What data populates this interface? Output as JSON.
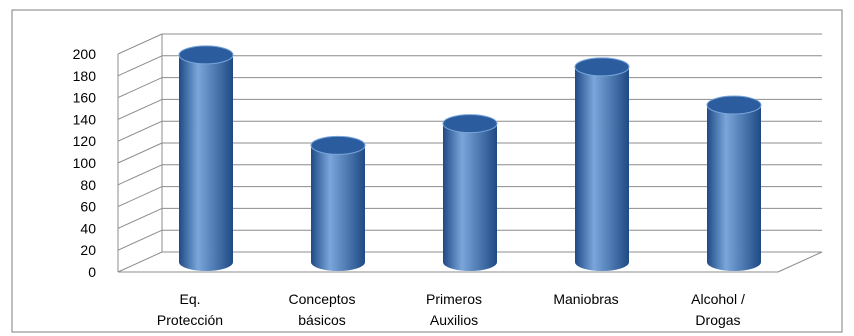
{
  "chart_data": {
    "type": "bar",
    "categories": [
      [
        "Eq.",
        "Protección"
      ],
      [
        "Conceptos",
        "básicos"
      ],
      [
        "Primeros",
        "Auxilios"
      ],
      [
        "Maniobras"
      ],
      [
        "Alcohol /",
        "Drogas"
      ]
    ],
    "values": [
      190,
      107,
      127,
      179,
      144
    ],
    "ylim": [
      0,
      200
    ],
    "yticks": [
      0,
      20,
      40,
      60,
      80,
      100,
      120,
      140,
      160,
      180,
      200
    ],
    "grid": true,
    "legend": "none",
    "bar_style": "3d-cylinder",
    "colors": {
      "bar_light": "#7aa6dc",
      "bar_mid": "#3f74b8",
      "bar_dark": "#1f4a84",
      "bar_top": "#2b5d9e",
      "grid": "#8c8c8c",
      "frame": "#7f7f7f"
    }
  }
}
